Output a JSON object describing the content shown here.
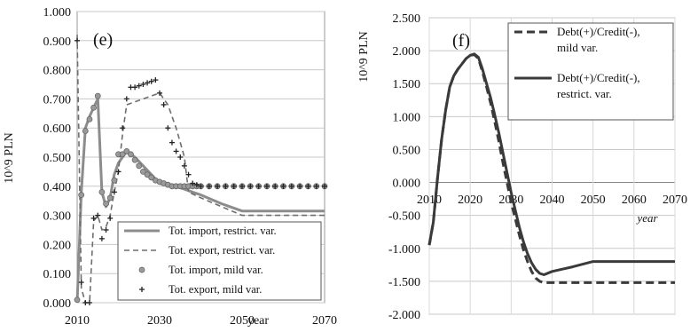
{
  "chart_data": [
    {
      "type": "line",
      "panel_label": "(e)",
      "ylabel": "10^9 PLN",
      "xlabel": "year",
      "xlim": [
        2010,
        2070
      ],
      "ylim": [
        0,
        1.0
      ],
      "x_ticks": [
        "2010",
        "2030",
        "2050",
        "2070"
      ],
      "y_ticks": [
        "0.000",
        "0.100",
        "0.200",
        "0.300",
        "0.400",
        "0.500",
        "0.600",
        "0.700",
        "0.800",
        "0.900",
        "1.000"
      ],
      "legend_position": "bottom-right",
      "series": [
        {
          "name": "Tot. import, restrict. var.",
          "style": "solid",
          "color": "#8c8c8c",
          "x": [
            2010,
            2011,
            2012,
            2013,
            2014,
            2015,
            2016,
            2017,
            2018,
            2019,
            2020,
            2021,
            2022,
            2024,
            2026,
            2028,
            2030,
            2032,
            2034,
            2036,
            2038,
            2040,
            2045,
            2050,
            2055,
            2060,
            2070
          ],
          "y": [
            0.0,
            0.38,
            0.6,
            0.64,
            0.67,
            0.7,
            0.38,
            0.33,
            0.36,
            0.44,
            0.48,
            0.5,
            0.52,
            0.5,
            0.47,
            0.44,
            0.41,
            0.405,
            0.4,
            0.39,
            0.38,
            0.37,
            0.34,
            0.315,
            0.315,
            0.315,
            0.315
          ]
        },
        {
          "name": "Tot. export, restrict. var.",
          "style": "dashed",
          "color": "#6e6e6e",
          "x": [
            2010,
            2011,
            2012,
            2013,
            2014,
            2015,
            2016,
            2017,
            2018,
            2019,
            2020,
            2021,
            2022,
            2024,
            2026,
            2028,
            2030,
            2032,
            2034,
            2035,
            2036,
            2037,
            2040,
            2045,
            2050,
            2055,
            2060,
            2070
          ],
          "y": [
            0.92,
            0.05,
            0.0,
            0.0,
            0.28,
            0.3,
            0.25,
            0.26,
            0.3,
            0.38,
            0.45,
            0.58,
            0.68,
            0.69,
            0.7,
            0.71,
            0.72,
            0.68,
            0.6,
            0.55,
            0.5,
            0.38,
            0.36,
            0.33,
            0.3,
            0.3,
            0.3,
            0.3
          ]
        },
        {
          "name": "Tot. import, mild var.",
          "style": "circle-markers",
          "color": "#8c8c8c",
          "x": [
            2010,
            2011,
            2012,
            2013,
            2014,
            2015,
            2016,
            2017,
            2018,
            2019,
            2020,
            2021,
            2022,
            2023,
            2024,
            2025,
            2026,
            2027,
            2028,
            2029,
            2030,
            2031,
            2032,
            2033,
            2034,
            2035,
            2036,
            2037,
            2038,
            2039,
            2040,
            2042,
            2044,
            2046,
            2048,
            2050,
            2052,
            2054,
            2056,
            2058,
            2060,
            2062,
            2064,
            2066,
            2068,
            2070
          ],
          "y": [
            0.01,
            0.37,
            0.59,
            0.63,
            0.67,
            0.71,
            0.38,
            0.34,
            0.36,
            0.42,
            0.51,
            0.51,
            0.52,
            0.51,
            0.49,
            0.47,
            0.45,
            0.44,
            0.43,
            0.42,
            0.415,
            0.41,
            0.405,
            0.4,
            0.4,
            0.4,
            0.4,
            0.4,
            0.4,
            0.4,
            0.4,
            0.4,
            0.4,
            0.4,
            0.4,
            0.4,
            0.4,
            0.4,
            0.4,
            0.4,
            0.4,
            0.4,
            0.4,
            0.4,
            0.4,
            0.4
          ]
        },
        {
          "name": "Tot. export, mild var.",
          "style": "plus-markers",
          "color": "#222222",
          "x": [
            2010,
            2011,
            2012,
            2013,
            2014,
            2015,
            2016,
            2017,
            2018,
            2019,
            2020,
            2021,
            2022,
            2023,
            2024,
            2025,
            2026,
            2027,
            2028,
            2029,
            2030,
            2031,
            2032,
            2033,
            2034,
            2035,
            2036,
            2037,
            2038,
            2039,
            2040,
            2042,
            2044,
            2046,
            2048,
            2050,
            2052,
            2054,
            2056,
            2058,
            2060,
            2062,
            2064,
            2066,
            2068,
            2070
          ],
          "y": [
            0.9,
            0.07,
            0.0,
            0.0,
            0.29,
            0.3,
            0.22,
            0.25,
            0.29,
            0.38,
            0.45,
            0.6,
            0.7,
            0.74,
            0.74,
            0.745,
            0.75,
            0.755,
            0.76,
            0.765,
            0.72,
            0.68,
            0.6,
            0.55,
            0.52,
            0.5,
            0.47,
            0.44,
            0.41,
            0.405,
            0.4,
            0.4,
            0.4,
            0.4,
            0.4,
            0.4,
            0.4,
            0.4,
            0.4,
            0.4,
            0.4,
            0.4,
            0.4,
            0.4,
            0.4,
            0.4
          ]
        }
      ]
    },
    {
      "type": "line",
      "panel_label": "(f)",
      "ylabel": "10^9 PLN",
      "xlabel": "year",
      "xlim": [
        2010,
        2070
      ],
      "ylim": [
        -2.0,
        2.5
      ],
      "x_ticks": [
        "2010",
        "2020",
        "2030",
        "2040",
        "2050",
        "2060",
        "2070"
      ],
      "y_ticks": [
        "-2.000",
        "-1.500",
        "-1.000",
        "-0.500",
        "0.000",
        "0.500",
        "1.000",
        "1.500",
        "2.000",
        "2.500"
      ],
      "legend_position": "top-right",
      "series": [
        {
          "name": "Debt(+)/Credit(-), mild var.",
          "style": "dashed",
          "color": "#3a3a3a",
          "x": [
            2010,
            2011,
            2012,
            2013,
            2014,
            2015,
            2016,
            2017,
            2018,
            2019,
            2020,
            2021,
            2022,
            2023,
            2024,
            2025,
            2026,
            2027,
            2028,
            2029,
            2030,
            2031,
            2032,
            2033,
            2034,
            2035,
            2036,
            2037,
            2038,
            2040,
            2050,
            2060,
            2070
          ],
          "y": [
            -0.95,
            -0.6,
            0.05,
            0.65,
            1.1,
            1.45,
            1.62,
            1.72,
            1.8,
            1.88,
            1.93,
            1.94,
            1.88,
            1.68,
            1.45,
            1.2,
            0.92,
            0.62,
            0.3,
            0.0,
            -0.3,
            -0.55,
            -0.8,
            -1.02,
            -1.2,
            -1.35,
            -1.45,
            -1.5,
            -1.52,
            -1.52,
            -1.52,
            -1.52,
            -1.52
          ]
        },
        {
          "name": "Debt(+)/Credit(-), restrict. var.",
          "style": "solid",
          "color": "#3a3a3a",
          "x": [
            2010,
            2011,
            2012,
            2013,
            2014,
            2015,
            2016,
            2017,
            2018,
            2019,
            2020,
            2021,
            2022,
            2023,
            2024,
            2025,
            2026,
            2027,
            2028,
            2029,
            2030,
            2031,
            2032,
            2033,
            2034,
            2035,
            2036,
            2037,
            2038,
            2040,
            2045,
            2050,
            2055,
            2060,
            2070
          ],
          "y": [
            -0.95,
            -0.6,
            0.05,
            0.65,
            1.1,
            1.45,
            1.62,
            1.72,
            1.8,
            1.88,
            1.93,
            1.95,
            1.9,
            1.72,
            1.5,
            1.28,
            1.02,
            0.75,
            0.45,
            0.15,
            -0.15,
            -0.42,
            -0.68,
            -0.9,
            -1.08,
            -1.22,
            -1.32,
            -1.38,
            -1.4,
            -1.35,
            -1.28,
            -1.2,
            -1.2,
            -1.2,
            -1.2
          ]
        }
      ]
    }
  ]
}
